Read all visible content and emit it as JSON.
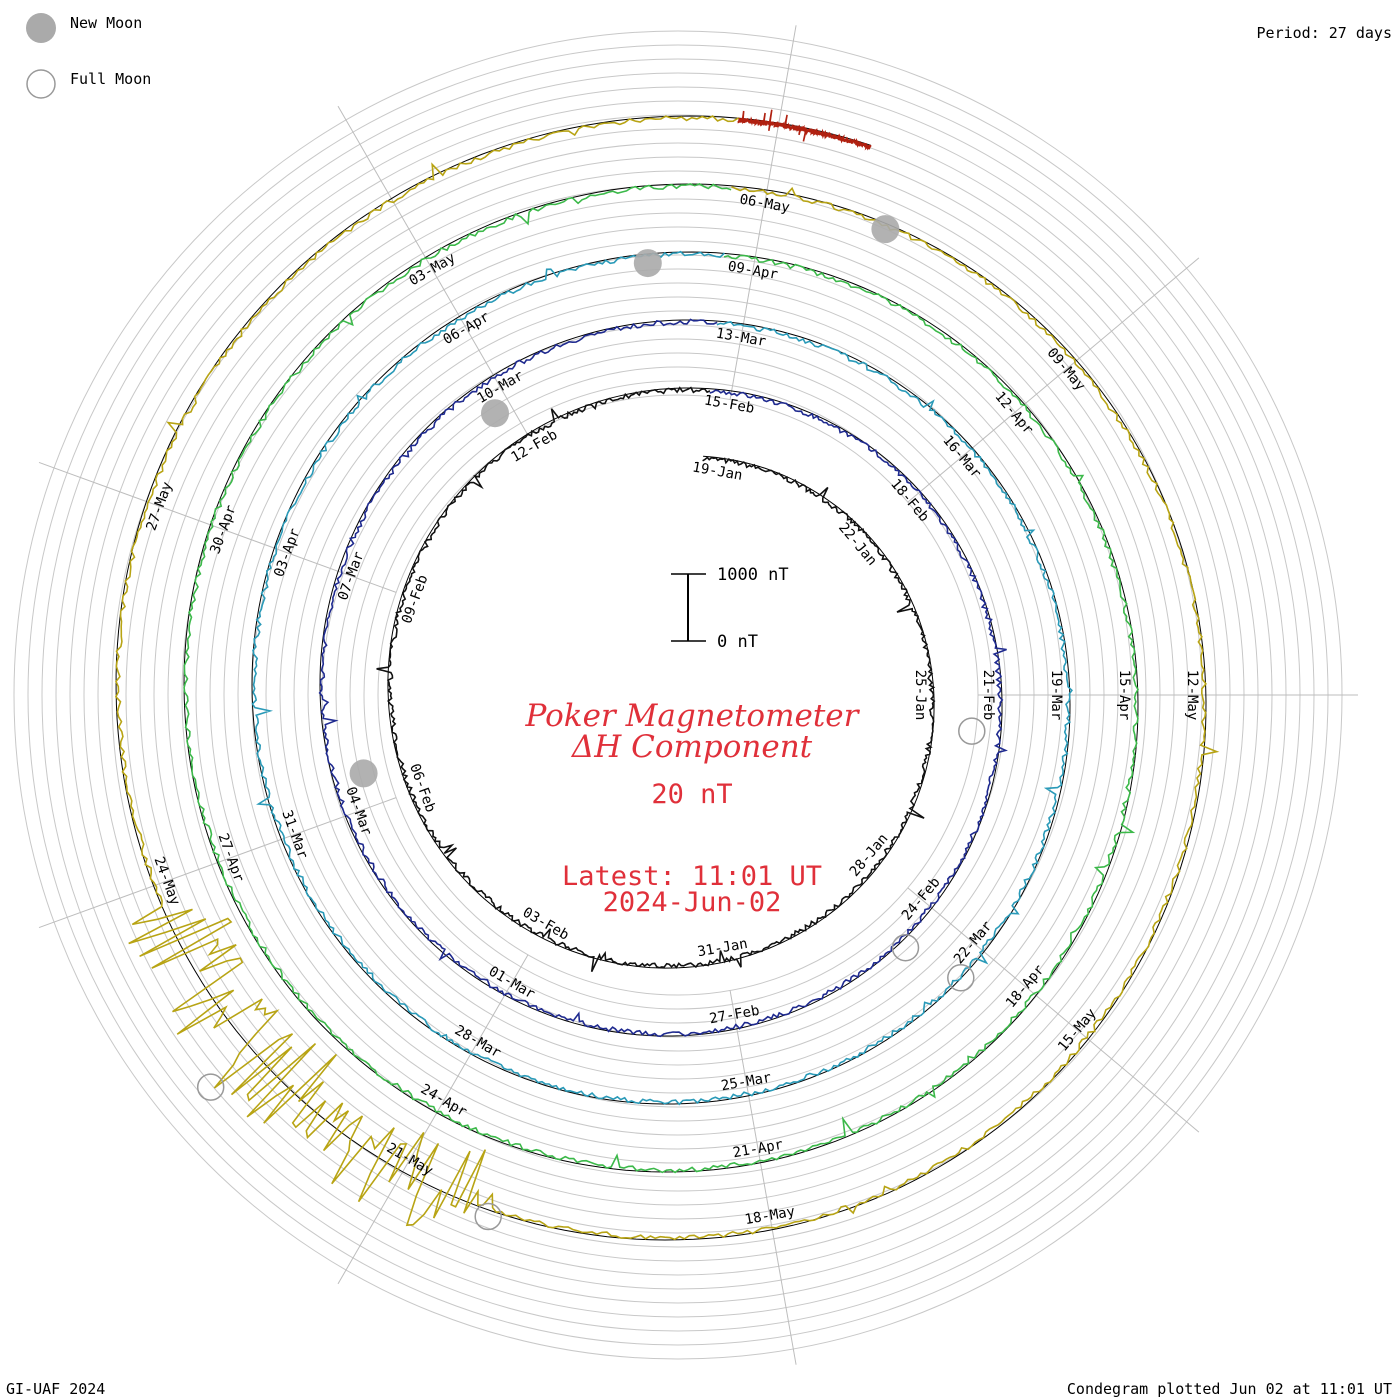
{
  "legend": {
    "new_moon_label": "New Moon",
    "full_moon_label": "Full Moon",
    "new_moon_color": "#aaaaaa",
    "full_moon_color": "#999999"
  },
  "header": {
    "period": "Period: 27 days"
  },
  "footer": {
    "left": "GI-UAF 2024",
    "right": "Condegram plotted Jun 02 at 11:01 UT"
  },
  "center": {
    "title_line1": "Poker Magnetometer",
    "title_line2": "ΔH Component",
    "spacing": "20 nT",
    "latest_line1": "Latest: 11:01 UT",
    "latest_line2": "2024-Jun-02",
    "scale_top": "1000 nT",
    "scale_bottom": "0 nT"
  },
  "chart_data": {
    "type": "line",
    "plot": "condegram (spiral)",
    "period_days": 27,
    "start_date": "2024-Jan-19",
    "end_date": "2024-Jun-02",
    "grid": true,
    "series": [
      {
        "color": "#111111",
        "dates": [
          "19-Jan",
          "22-Jan",
          "25-Jan",
          "28-Jan",
          "31-Jan",
          "03-Feb",
          "06-Feb",
          "09-Feb",
          "12-Feb"
        ]
      },
      {
        "color": "#1f2a8f",
        "dates": [
          "15-Feb",
          "18-Feb",
          "21-Feb",
          "24-Feb",
          "27-Feb",
          "01-Mar",
          "04-Mar",
          "07-Mar",
          "10-Mar"
        ]
      },
      {
        "color": "#2a9ab8",
        "dates": [
          "13-Mar",
          "16-Mar",
          "19-Mar",
          "22-Mar",
          "25-Mar",
          "28-Mar",
          "31-Mar",
          "03-Apr",
          "06-Apr"
        ]
      },
      {
        "color": "#3cb94a",
        "dates": [
          "09-Apr",
          "12-Apr",
          "15-Apr",
          "18-Apr",
          "21-Apr",
          "24-Apr",
          "27-Apr",
          "30-Apr",
          "03-May"
        ]
      },
      {
        "color": "#b8a414",
        "dates": [
          "06-May",
          "09-May",
          "12-May",
          "15-May",
          "18-May",
          "21-May",
          "24-May",
          "27-May"
        ]
      },
      {
        "color": "#b02010",
        "dates": []
      }
    ],
    "new_moons": [
      {
        "r": 324,
        "ang": 256
      },
      {
        "r": 336,
        "ang": 327
      },
      {
        "r": 433,
        "ang": 356
      },
      {
        "r": 510,
        "ang": 24
      }
    ],
    "full_moons": [
      {
        "r": 296,
        "ang": 97
      },
      {
        "r": 340,
        "ang": 138
      },
      {
        "r": 400,
        "ang": 135
      },
      {
        "r": 555,
        "ang": 200
      },
      {
        "r": 610,
        "ang": 230
      }
    ]
  }
}
